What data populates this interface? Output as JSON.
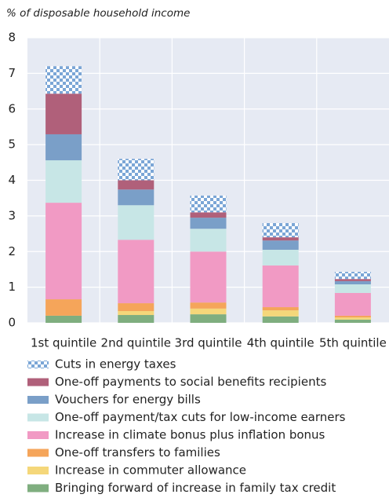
{
  "chart_data": {
    "type": "bar",
    "stacked": true,
    "title": "% of disposable household income",
    "categories": [
      "1st quintile",
      "2nd quintile",
      "3rd quintile",
      "4th quintile",
      "5th quintile"
    ],
    "ylim": [
      0,
      8
    ],
    "yticks": [
      0,
      1,
      2,
      3,
      4,
      5,
      6,
      7,
      8
    ],
    "grid": true,
    "series": [
      {
        "name": "Bringing forward of increase in family tax credit",
        "color": "#7fae7f",
        "values": [
          0.2,
          0.22,
          0.24,
          0.18,
          0.09
        ]
      },
      {
        "name": "Increase in commuter allowance",
        "color": "#f5d77a",
        "values": [
          0,
          0.11,
          0.16,
          0.17,
          0.06
        ]
      },
      {
        "name": "One-off transfers to families",
        "color": "#f5a55a",
        "values": [
          0.46,
          0.22,
          0.17,
          0.09,
          0.05
        ]
      },
      {
        "name": "Increase in climate bonus plus inflation bonus",
        "color": "#f19ac4",
        "values": [
          2.71,
          1.78,
          1.43,
          1.17,
          0.64
        ]
      },
      {
        "name": "One-off payment/tax cuts for low-income earners",
        "color": "#c7e6e6",
        "values": [
          1.19,
          0.97,
          0.64,
          0.44,
          0.24
        ]
      },
      {
        "name": "Vouchers for energy bills",
        "color": "#7a9fc8",
        "values": [
          0.73,
          0.44,
          0.31,
          0.26,
          0.09
        ]
      },
      {
        "name": "One-off payments to social benefits recipients",
        "color": "#b0607a",
        "values": [
          1.14,
          0.26,
          0.15,
          0.09,
          0.06
        ]
      },
      {
        "name": "Cuts in energy taxes",
        "color": "#7ba6d6",
        "pattern": "checker",
        "values": [
          0.77,
          0.6,
          0.47,
          0.4,
          0.2
        ]
      }
    ]
  }
}
